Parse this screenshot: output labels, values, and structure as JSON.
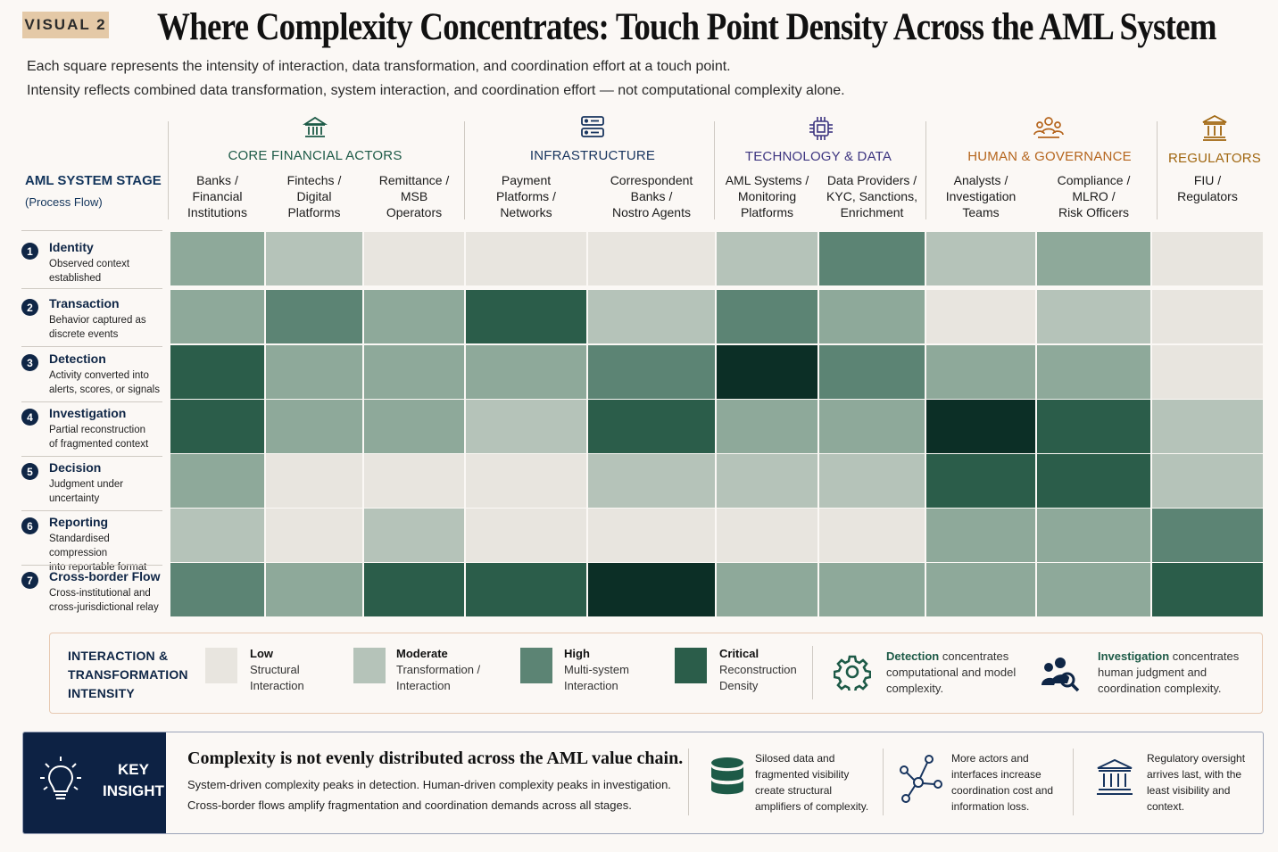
{
  "badge": "VISUAL 2",
  "title": "Where Complexity Concentrates: Touch Point Density Across the AML System",
  "subtitle1": "Each square represents the intensity of interaction, data transformation, and coordination effort at a touch point.",
  "subtitle2": "Intensity reflects combined data transformation, system interaction, and coordination effort — not computational complexity alone.",
  "stage_header": {
    "title": "AML SYSTEM STAGE",
    "sub": "(Process Flow)"
  },
  "groups": [
    {
      "title": "CORE FINANCIAL ACTORS",
      "icon": "bank-icon",
      "color": "#1d5a47"
    },
    {
      "title": "INFRASTRUCTURE",
      "icon": "server-icon",
      "color": "#17345e"
    },
    {
      "title": "TECHNOLOGY & DATA",
      "icon": "chip-icon",
      "color": "#3d3580"
    },
    {
      "title": "HUMAN & GOVERNANCE",
      "icon": "people-icon",
      "color": "#b5651d"
    },
    {
      "title": "REGULATORS",
      "icon": "institution-icon",
      "color": "#a0660f"
    }
  ],
  "columns": [
    "Banks /\nFinancial\nInstitutions",
    "Fintechs /\nDigital\nPlatforms",
    "Remittance /\nMSB\nOperators",
    "Payment\nPlatforms /\nNetworks",
    "Correspondent\nBanks /\nNostro Agents",
    "AML Systems /\nMonitoring\nPlatforms",
    "Data Providers /\nKYC, Sanctions,\nEnrichment",
    "Analysts /\nInvestigation\nTeams",
    "Compliance /\nMLRO /\nRisk Officers",
    "FIU /\nRegulators"
  ],
  "stages": [
    {
      "num": "1",
      "name": "Identity",
      "desc": "Observed context\nestablished"
    },
    {
      "num": "2",
      "name": "Transaction",
      "desc": "Behavior captured as\ndiscrete events"
    },
    {
      "num": "3",
      "name": "Detection",
      "desc": "Activity converted into\nalerts, scores, or signals"
    },
    {
      "num": "4",
      "name": "Investigation",
      "desc": "Partial reconstruction\nof fragmented context"
    },
    {
      "num": "5",
      "name": "Decision",
      "desc": "Judgment under\nuncertainty"
    },
    {
      "num": "6",
      "name": "Reporting",
      "desc": "Standardised compression\ninto reportable format"
    },
    {
      "num": "7",
      "name": "Cross-border Flow",
      "desc": "Cross-institutional and\ncross-jurisdictional relay"
    }
  ],
  "intensity_colors": [
    "#e8e5df",
    "#b5c3b9",
    "#8ea99a",
    "#5c8474",
    "#2b5d4a",
    "#0c2f26"
  ],
  "heatmap": [
    [
      2,
      1,
      0,
      0,
      0,
      1,
      3,
      1,
      2,
      0
    ],
    [
      2,
      3,
      2,
      4,
      1,
      3,
      2,
      0,
      1,
      0
    ],
    [
      4,
      2,
      2,
      2,
      3,
      5,
      3,
      2,
      2,
      0
    ],
    [
      4,
      2,
      2,
      1,
      4,
      2,
      2,
      5,
      4,
      1
    ],
    [
      2,
      0,
      0,
      0,
      1,
      1,
      1,
      4,
      4,
      1
    ],
    [
      1,
      0,
      1,
      0,
      0,
      0,
      0,
      2,
      2,
      3
    ],
    [
      3,
      2,
      4,
      4,
      5,
      2,
      2,
      2,
      2,
      4
    ]
  ],
  "legend": {
    "title_line1": "INTERACTION &",
    "title_line2": "TRANSFORMATION",
    "title_line3": "INTENSITY",
    "items": [
      {
        "label": "Low",
        "l2": "Structural",
        "l3": "Interaction",
        "color": "#e8e5df"
      },
      {
        "label": "Moderate",
        "l2": "Transformation /",
        "l3": "Interaction",
        "color": "#b5c3b9"
      },
      {
        "label": "High",
        "l2": "Multi-system",
        "l3": "Interaction",
        "color": "#5c8474"
      },
      {
        "label": "Critical",
        "l2": "Reconstruction",
        "l3": "Density",
        "color": "#2b5d4a"
      }
    ],
    "note1_bold": "Detection",
    "note1_rest": " concentrates computational and model complexity.",
    "note2_bold": "Investigation",
    "note2_rest": " concentrates human judgment and coordination complexity."
  },
  "insight": {
    "label1": "KEY",
    "label2": "INSIGHT",
    "heading": "Complexity is not evenly distributed across the AML value chain.",
    "line1": "System-driven complexity peaks in detection. Human-driven complexity peaks in investigation.",
    "line2": "Cross-border flows amplify fragmentation and coordination demands across all stages.",
    "point1": "Silosed data and fragmented visibility create structural amplifiers of complexity.",
    "point2": "More actors and interfaces increase coordination cost and information loss.",
    "point3": "Regulatory oversight arrives last, with the least visibility and context."
  }
}
